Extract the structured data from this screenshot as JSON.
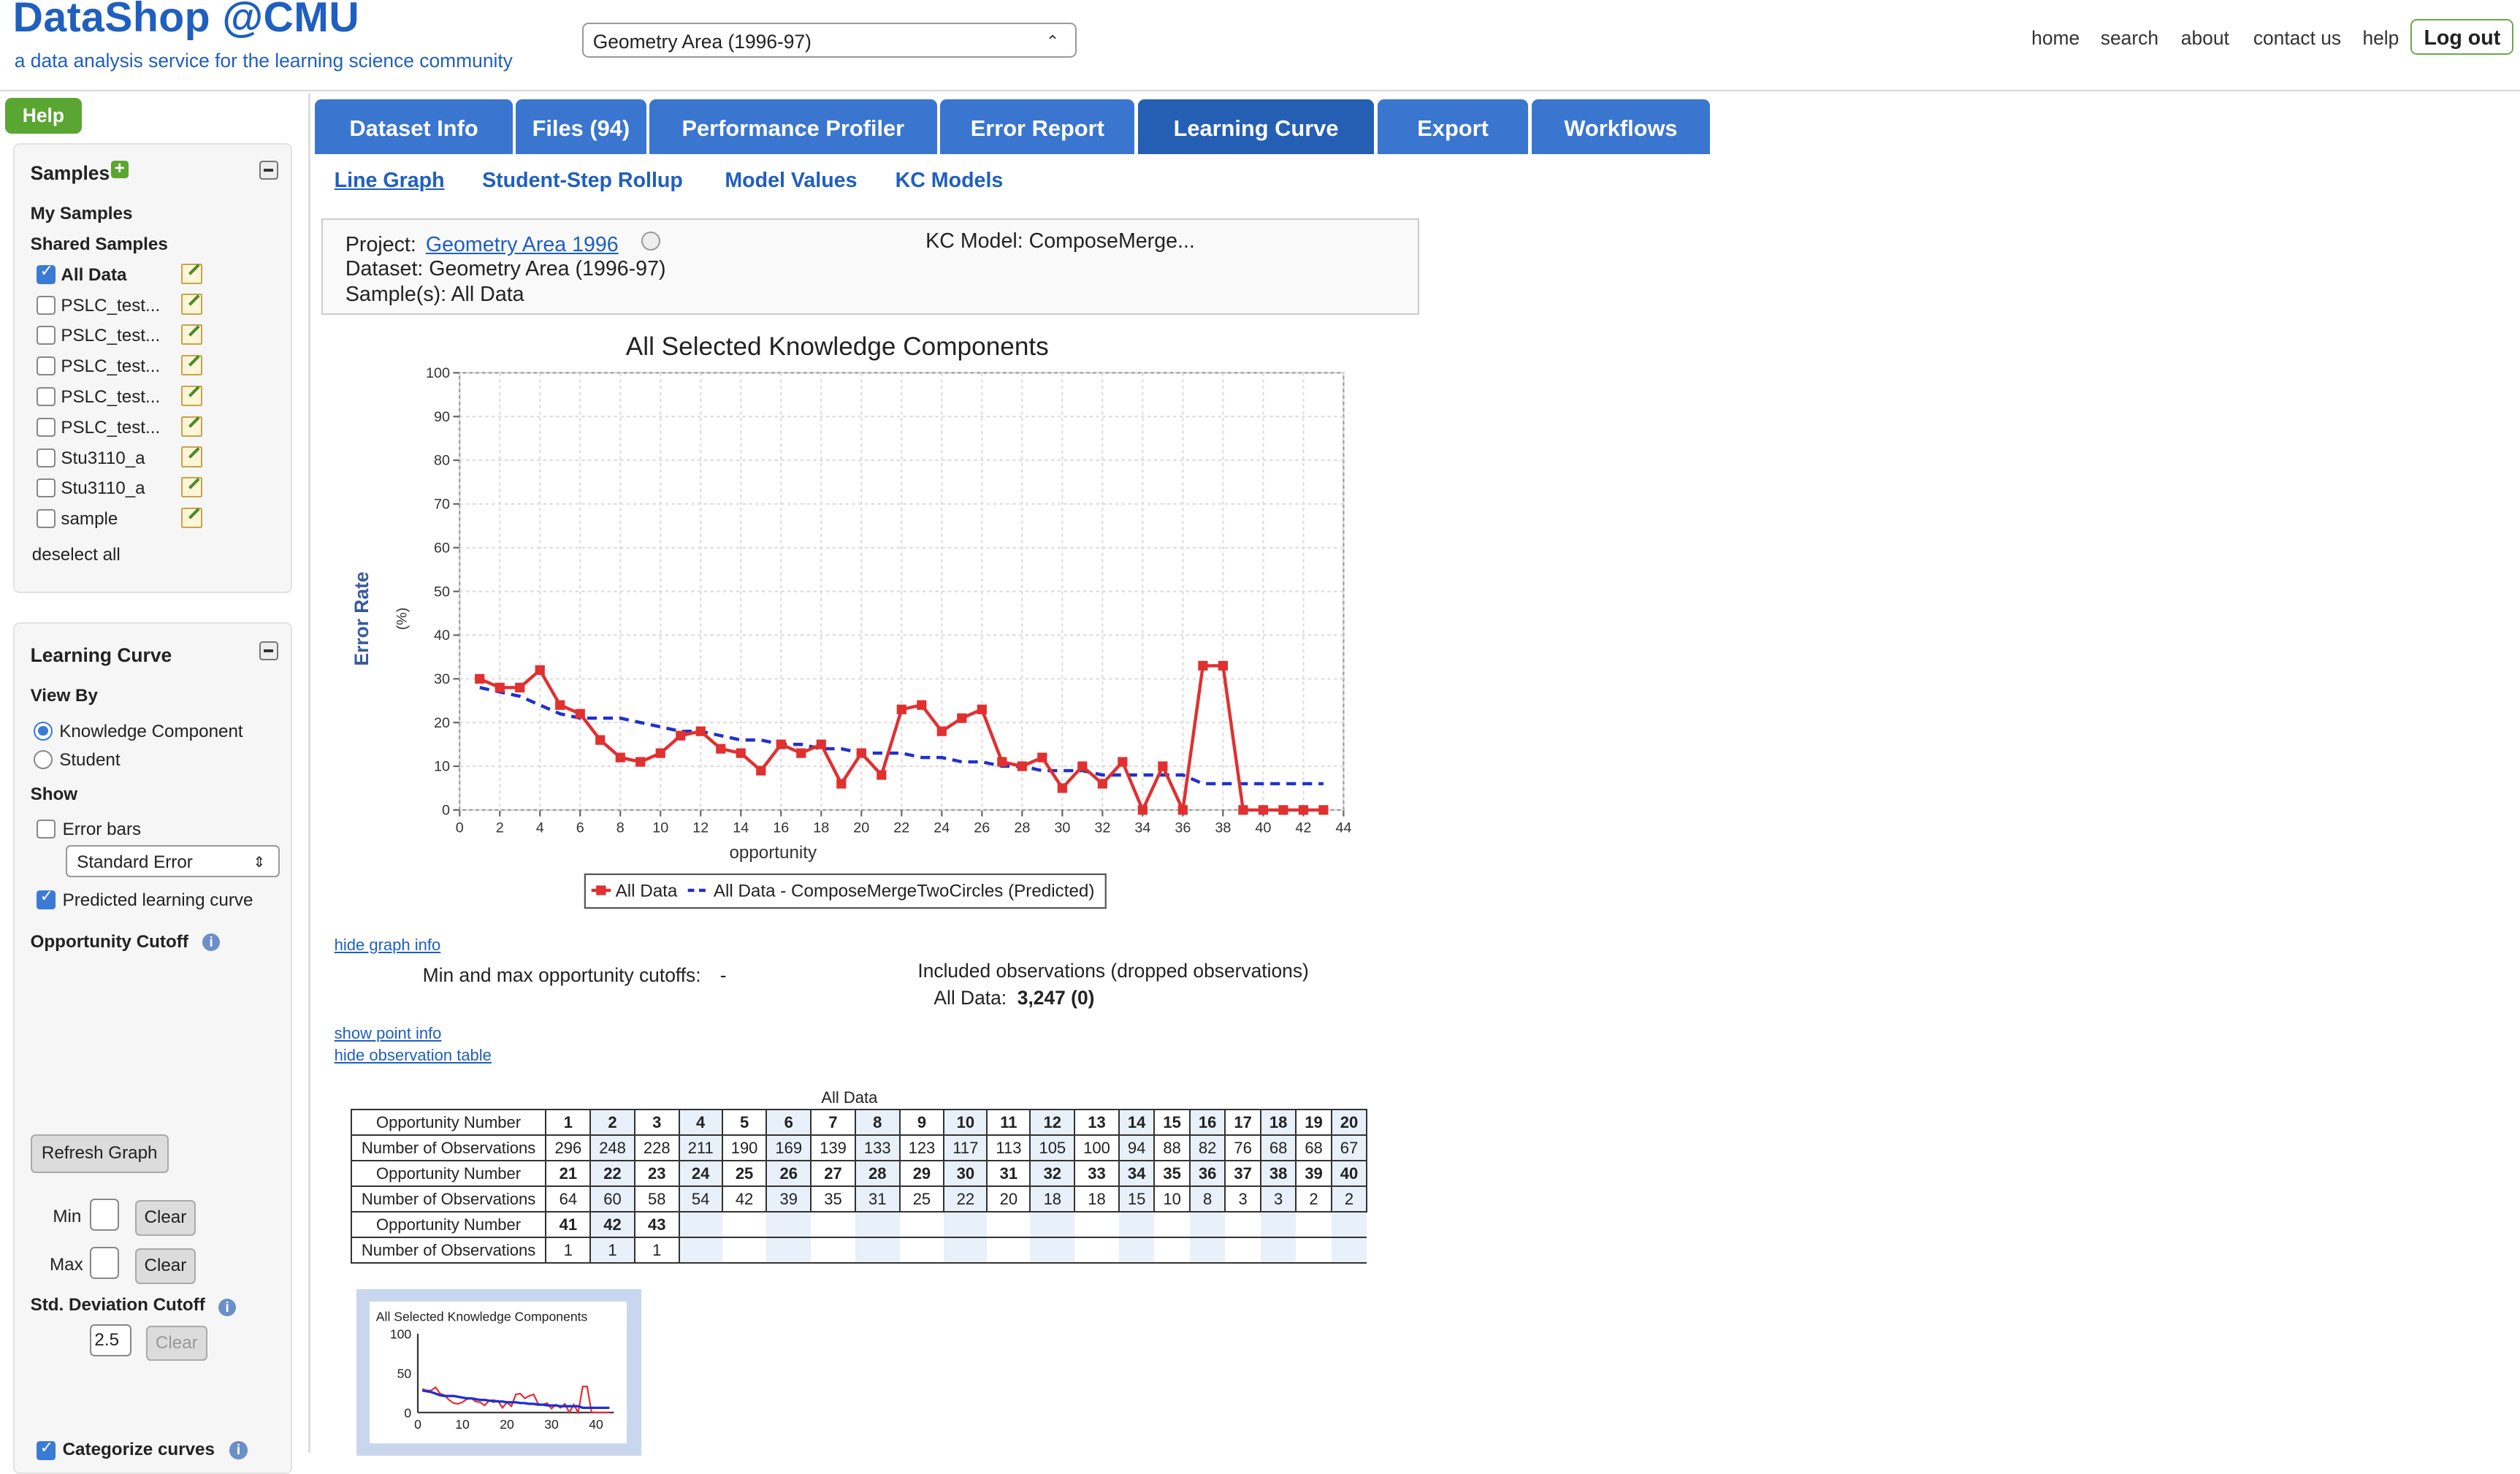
{
  "header": {
    "logo": "DataShop @CMU",
    "tagline": "a data analysis service for the learning science community",
    "dataset_select": "Geometry Area (1996-97)",
    "nav": [
      "home",
      "search",
      "about",
      "contact us",
      "help"
    ],
    "logout": "Log out"
  },
  "sidebar": {
    "help": "Help",
    "samples": {
      "title": "Samples",
      "my_samples": "My Samples",
      "shared_samples": "Shared Samples",
      "items": [
        {
          "label": "All Data",
          "checked": true
        },
        {
          "label": "PSLC_test...",
          "checked": false
        },
        {
          "label": "PSLC_test...",
          "checked": false
        },
        {
          "label": "PSLC_test...",
          "checked": false
        },
        {
          "label": "PSLC_test...",
          "checked": false
        },
        {
          "label": "PSLC_test...",
          "checked": false
        },
        {
          "label": "Stu3110_a",
          "checked": false
        },
        {
          "label": "Stu3110_a",
          "checked": false
        },
        {
          "label": "sample",
          "checked": false
        }
      ],
      "deselect_all": "deselect all"
    },
    "learning_curve": {
      "title": "Learning Curve",
      "view_by": "View By",
      "kc": "Knowledge Component",
      "student": "Student",
      "show": "Show",
      "error_bars": "Error bars",
      "error_type": "Standard Error",
      "predicted": "Predicted learning curve",
      "opportunity_cutoff": "Opportunity Cutoff",
      "refresh": "Refresh Graph",
      "min": "Min",
      "max": "Max",
      "clear": "Clear",
      "std_cutoff": "Std. Deviation Cutoff",
      "std_value": "2.5",
      "categorize": "Categorize curves"
    }
  },
  "tabs": [
    {
      "label": "Dataset Info"
    },
    {
      "label": "Files (94)"
    },
    {
      "label": "Performance Profiler"
    },
    {
      "label": "Error Report"
    },
    {
      "label": "Learning Curve",
      "active": true
    },
    {
      "label": "Export"
    },
    {
      "label": "Workflows"
    }
  ],
  "subtabs": [
    "Line Graph",
    "Student-Step Rollup",
    "Model Values",
    "KC Models"
  ],
  "info": {
    "project_label": "Project:",
    "project": "Geometry Area 1996",
    "dataset": "Dataset: Geometry Area (1996-97)",
    "samples": "Sample(s): All Data",
    "kc_model": "KC Model: ComposeMerge..."
  },
  "graph_info": {
    "hide_graph_info": "hide graph info",
    "cutoffs": "Min and max opportunity cutoffs:",
    "cutoffs_value": "-",
    "included": "Included observations (dropped observations)",
    "all_data_label": "All Data:",
    "all_data_value": "3,247 (0)",
    "show_point_info": "show point info",
    "hide_obs_table": "hide observation table"
  },
  "obs_table": {
    "title": "All Data",
    "opp_label": "Opportunity Number",
    "obs_label": "Number of Observations",
    "rows": [
      {
        "opp": [
          1,
          2,
          3,
          4,
          5,
          6,
          7,
          8,
          9,
          10,
          11,
          12,
          13,
          14,
          15,
          16,
          17,
          18,
          19,
          20
        ],
        "obs": [
          296,
          248,
          228,
          211,
          190,
          169,
          139,
          133,
          123,
          117,
          113,
          105,
          100,
          94,
          88,
          82,
          76,
          68,
          68,
          67
        ]
      },
      {
        "opp": [
          21,
          22,
          23,
          24,
          25,
          26,
          27,
          28,
          29,
          30,
          31,
          32,
          33,
          34,
          35,
          36,
          37,
          38,
          39,
          40
        ],
        "obs": [
          64,
          60,
          58,
          54,
          42,
          39,
          35,
          31,
          25,
          22,
          20,
          18,
          18,
          15,
          10,
          8,
          3,
          3,
          2,
          2
        ]
      },
      {
        "opp": [
          41,
          42,
          43
        ],
        "obs": [
          1,
          1,
          1
        ]
      }
    ]
  },
  "chart_data": {
    "type": "line",
    "title": "All Selected Knowledge Components",
    "xlabel": "opportunity",
    "ylabel": "Error Rate",
    "ylabel_unit": "(%)",
    "xlim": [
      0,
      44
    ],
    "ylim": [
      0,
      100
    ],
    "xticks": [
      0,
      2,
      4,
      6,
      8,
      10,
      12,
      14,
      16,
      18,
      20,
      22,
      24,
      26,
      28,
      30,
      32,
      34,
      36,
      38,
      40,
      42,
      44
    ],
    "yticks": [
      0,
      10,
      20,
      30,
      40,
      50,
      60,
      70,
      80,
      90,
      100
    ],
    "grid": true,
    "legend_position": "bottom",
    "series": [
      {
        "name": "All Data",
        "color": "#e03030",
        "style": "solid-square",
        "x": [
          1,
          2,
          3,
          4,
          5,
          6,
          7,
          8,
          9,
          10,
          11,
          12,
          13,
          14,
          15,
          16,
          17,
          18,
          19,
          20,
          21,
          22,
          23,
          24,
          25,
          26,
          27,
          28,
          29,
          30,
          31,
          32,
          33,
          34,
          35,
          36,
          37,
          38,
          39,
          40,
          41,
          42,
          43
        ],
        "y": [
          30,
          28,
          28,
          32,
          24,
          22,
          16,
          12,
          11,
          13,
          17,
          18,
          14,
          13,
          9,
          15,
          13,
          15,
          6,
          13,
          8,
          23,
          24,
          18,
          21,
          23,
          11,
          10,
          12,
          5,
          10,
          6,
          11,
          0,
          10,
          0,
          33,
          33,
          0,
          0,
          0,
          0,
          0
        ]
      },
      {
        "name": "All Data - ComposeMergeTwoCircles (Predicted)",
        "color": "#2030d0",
        "style": "dashed",
        "x": [
          1,
          2,
          3,
          4,
          5,
          6,
          7,
          8,
          9,
          10,
          11,
          12,
          13,
          14,
          15,
          16,
          17,
          18,
          19,
          20,
          21,
          22,
          23,
          24,
          25,
          26,
          27,
          28,
          29,
          30,
          31,
          32,
          33,
          34,
          35,
          36,
          37,
          38,
          39,
          40,
          41,
          42,
          43
        ],
        "y": [
          28,
          27,
          26,
          24,
          22,
          21,
          21,
          21,
          20,
          19,
          18,
          18,
          17,
          16,
          16,
          15,
          15,
          14,
          14,
          13,
          13,
          13,
          12,
          12,
          11,
          11,
          10,
          10,
          9,
          9,
          9,
          8,
          8,
          8,
          8,
          8,
          6,
          6,
          6,
          6,
          6,
          6,
          6
        ]
      }
    ]
  },
  "thumbnail": {
    "title": "All Selected Knowledge Components",
    "yticks": [
      0,
      50,
      100
    ],
    "xticks": [
      0,
      10,
      20,
      30,
      40
    ]
  }
}
